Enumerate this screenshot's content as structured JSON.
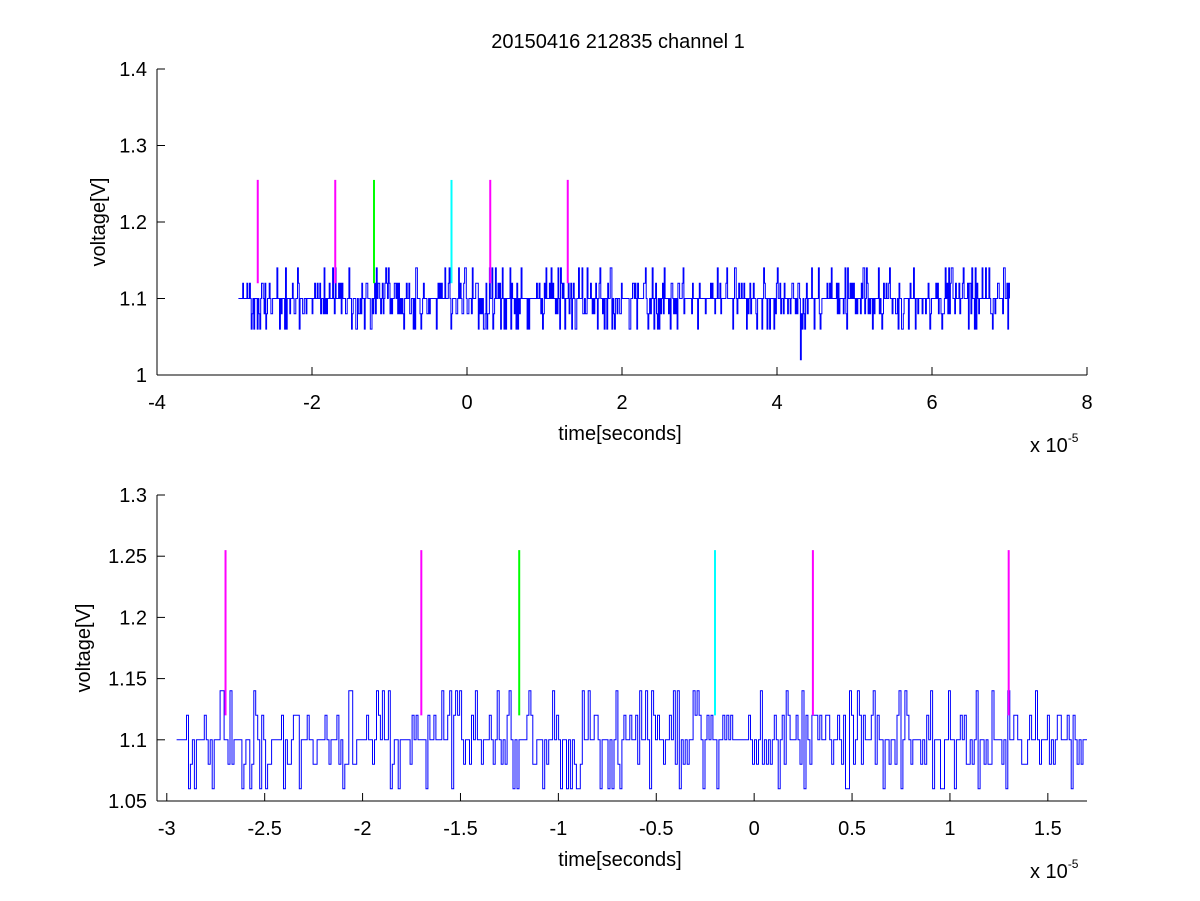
{
  "figure_title": "20150416 212835 channel 1",
  "chart_data": [
    {
      "type": "line",
      "title": "20150416 212835 channel 1",
      "xlabel": "time[seconds]",
      "ylabel": "voltage[V]",
      "x_exponent": "x 10",
      "x_exponent_power": "-5",
      "xlim": [
        -4e-05,
        8e-05
      ],
      "ylim": [
        1.0,
        1.4
      ],
      "xticks": [
        -4e-05,
        -2e-05,
        0,
        2e-05,
        4e-05,
        6e-05,
        8e-05
      ],
      "xtick_labels": [
        "-4",
        "-2",
        "0",
        "2",
        "4",
        "6",
        "8"
      ],
      "yticks": [
        1.0,
        1.1,
        1.2,
        1.3,
        1.4
      ],
      "ytick_labels": [
        "1",
        "1.1",
        "1.2",
        "1.3",
        "1.4"
      ],
      "grid": false,
      "signal": {
        "color": "#0000ff",
        "x_start": -2.95e-05,
        "x_end": 7e-05,
        "levels": [
          1.06,
          1.08,
          1.1,
          1.12,
          1.14
        ],
        "baseline": 1.1,
        "dip_x": 4.3e-05,
        "dip_value": 1.02,
        "sample_count": 900
      },
      "markers": [
        {
          "x": -2.7e-05,
          "y0": 1.12,
          "y1": 1.255,
          "color": "#ff00ff"
        },
        {
          "x": -1.7e-05,
          "y0": 1.12,
          "y1": 1.255,
          "color": "#ff00ff"
        },
        {
          "x": -1.2e-05,
          "y0": 1.12,
          "y1": 1.255,
          "color": "#00ff00"
        },
        {
          "x": -2e-06,
          "y0": 1.12,
          "y1": 1.255,
          "color": "#00ffff"
        },
        {
          "x": 3e-06,
          "y0": 1.12,
          "y1": 1.255,
          "color": "#ff00ff"
        },
        {
          "x": 1.3e-05,
          "y0": 1.12,
          "y1": 1.255,
          "color": "#ff00ff"
        }
      ]
    },
    {
      "type": "line",
      "title": "",
      "xlabel": "time[seconds]",
      "ylabel": "voltage[V]",
      "x_exponent": "x 10",
      "x_exponent_power": "-5",
      "xlim": [
        -3.05e-05,
        1.7e-05
      ],
      "ylim": [
        1.05,
        1.3
      ],
      "xticks": [
        -3e-05,
        -2.5e-05,
        -2e-05,
        -1.5e-05,
        -1e-05,
        -5e-06,
        0,
        5e-06,
        1e-05,
        1.5e-05
      ],
      "xtick_labels": [
        "-3",
        "-2.5",
        "-2",
        "-1.5",
        "-1",
        "-0.5",
        "0",
        "0.5",
        "1",
        "1.5"
      ],
      "yticks": [
        1.05,
        1.1,
        1.15,
        1.2,
        1.25,
        1.3
      ],
      "ytick_labels": [
        "1.05",
        "1.1",
        "1.15",
        "1.2",
        "1.25",
        "1.3"
      ],
      "grid": false,
      "signal": {
        "color": "#0000ff",
        "x_start": -2.95e-05,
        "x_end": 1.7e-05,
        "levels": [
          1.06,
          1.08,
          1.1,
          1.12,
          1.14
        ],
        "baseline": 1.1,
        "sample_count": 460
      },
      "markers": [
        {
          "x": -2.7e-05,
          "y0": 1.12,
          "y1": 1.255,
          "color": "#ff00ff"
        },
        {
          "x": -1.7e-05,
          "y0": 1.12,
          "y1": 1.255,
          "color": "#ff00ff"
        },
        {
          "x": -1.2e-05,
          "y0": 1.12,
          "y1": 1.255,
          "color": "#00ff00"
        },
        {
          "x": -2e-06,
          "y0": 1.12,
          "y1": 1.255,
          "color": "#00ffff"
        },
        {
          "x": 3e-06,
          "y0": 1.12,
          "y1": 1.255,
          "color": "#ff00ff"
        },
        {
          "x": 1.3e-05,
          "y0": 1.12,
          "y1": 1.255,
          "color": "#ff00ff"
        }
      ]
    }
  ]
}
